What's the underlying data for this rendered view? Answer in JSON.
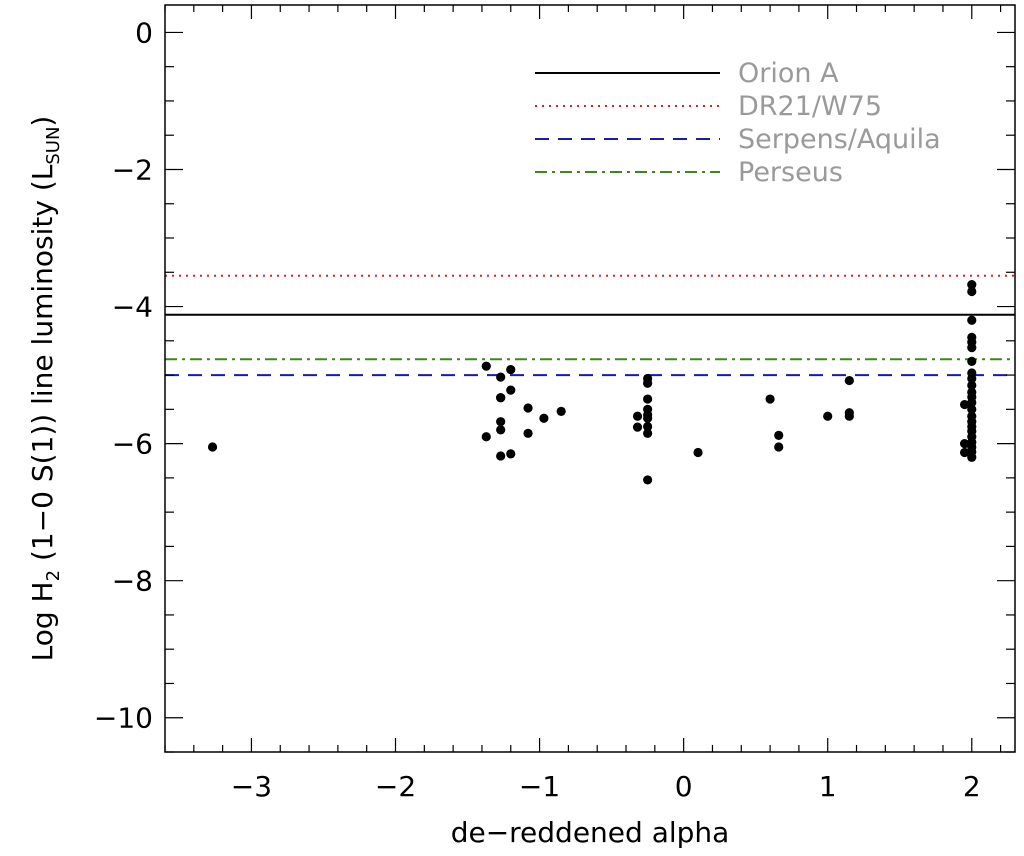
{
  "chart_data": {
    "type": "scatter",
    "title": "",
    "xlabel": "de−reddened alpha",
    "ylabel": {
      "prefix": "Log H",
      "h2_subscript": "2",
      "middle": " (1−0 S(1)) line luminosity (L",
      "sun_subscript": "SUN",
      "suffix": ")"
    },
    "xlim": [
      -3.6,
      2.3
    ],
    "ylim": [
      -10.5,
      0.4
    ],
    "xticks": [
      -3,
      -2,
      -1,
      0,
      1,
      2
    ],
    "xtick_labels": [
      "−3",
      "−2",
      "−1",
      "0",
      "1",
      "2"
    ],
    "yticks": [
      0,
      -2,
      -4,
      -6,
      -8,
      -10
    ],
    "ytick_labels": [
      "0",
      "−2",
      "−4",
      "−6",
      "−8",
      "−10"
    ],
    "legend_position": "top-right",
    "reference_lines": [
      {
        "name": "Orion A",
        "y": -4.12,
        "style": "solid",
        "color": "#000000"
      },
      {
        "name": "DR21/W75",
        "y": -3.55,
        "style": "dotted",
        "color": "#e02020"
      },
      {
        "name": "Serpens/Aquila",
        "y": -5.0,
        "style": "dashed",
        "color": "#1a1ab0"
      },
      {
        "name": "Perseus",
        "y": -4.77,
        "style": "dashdot",
        "color": "#3a8a1a"
      }
    ],
    "points": [
      {
        "x": -3.27,
        "y": -6.05
      },
      {
        "x": -1.37,
        "y": -4.87
      },
      {
        "x": -1.37,
        "y": -5.9
      },
      {
        "x": -1.27,
        "y": -5.03
      },
      {
        "x": -1.27,
        "y": -5.33
      },
      {
        "x": -1.27,
        "y": -5.33
      },
      {
        "x": -1.27,
        "y": -5.68
      },
      {
        "x": -1.27,
        "y": -5.8
      },
      {
        "x": -1.27,
        "y": -6.18
      },
      {
        "x": -1.2,
        "y": -4.92
      },
      {
        "x": -1.2,
        "y": -5.22
      },
      {
        "x": -1.2,
        "y": -6.15
      },
      {
        "x": -1.08,
        "y": -5.48
      },
      {
        "x": -1.08,
        "y": -5.85
      },
      {
        "x": -0.97,
        "y": -5.63
      },
      {
        "x": -0.85,
        "y": -5.53
      },
      {
        "x": -0.32,
        "y": -5.6
      },
      {
        "x": -0.32,
        "y": -5.76
      },
      {
        "x": -0.25,
        "y": -5.05
      },
      {
        "x": -0.25,
        "y": -5.12
      },
      {
        "x": -0.25,
        "y": -5.35
      },
      {
        "x": -0.25,
        "y": -5.5
      },
      {
        "x": -0.25,
        "y": -5.58
      },
      {
        "x": -0.25,
        "y": -5.63
      },
      {
        "x": -0.25,
        "y": -5.75
      },
      {
        "x": -0.25,
        "y": -5.85
      },
      {
        "x": -0.25,
        "y": -6.53
      },
      {
        "x": 0.1,
        "y": -6.13
      },
      {
        "x": 0.6,
        "y": -5.35
      },
      {
        "x": 0.66,
        "y": -5.88
      },
      {
        "x": 0.66,
        "y": -6.05
      },
      {
        "x": 1.0,
        "y": -5.6
      },
      {
        "x": 1.15,
        "y": -5.08
      },
      {
        "x": 1.15,
        "y": -5.55
      },
      {
        "x": 1.15,
        "y": -5.6
      },
      {
        "x": 2.0,
        "y": -3.68
      },
      {
        "x": 2.0,
        "y": -3.78
      },
      {
        "x": 2.0,
        "y": -4.2
      },
      {
        "x": 2.0,
        "y": -4.45
      },
      {
        "x": 2.0,
        "y": -4.52
      },
      {
        "x": 2.0,
        "y": -4.6
      },
      {
        "x": 2.0,
        "y": -4.8
      },
      {
        "x": 2.0,
        "y": -4.97
      },
      {
        "x": 2.0,
        "y": -5.05
      },
      {
        "x": 2.0,
        "y": -5.15
      },
      {
        "x": 2.0,
        "y": -5.25
      },
      {
        "x": 2.0,
        "y": -5.32
      },
      {
        "x": 2.0,
        "y": -5.4
      },
      {
        "x": 2.0,
        "y": -5.5
      },
      {
        "x": 2.0,
        "y": -5.6
      },
      {
        "x": 2.0,
        "y": -5.68
      },
      {
        "x": 2.0,
        "y": -5.75
      },
      {
        "x": 2.0,
        "y": -5.82
      },
      {
        "x": 2.0,
        "y": -5.9
      },
      {
        "x": 2.0,
        "y": -5.98
      },
      {
        "x": 2.0,
        "y": -6.05
      },
      {
        "x": 2.0,
        "y": -6.12
      },
      {
        "x": 2.0,
        "y": -6.2
      },
      {
        "x": 1.95,
        "y": -5.43
      },
      {
        "x": 1.95,
        "y": -6.0
      },
      {
        "x": 1.95,
        "y": -6.13
      }
    ]
  }
}
